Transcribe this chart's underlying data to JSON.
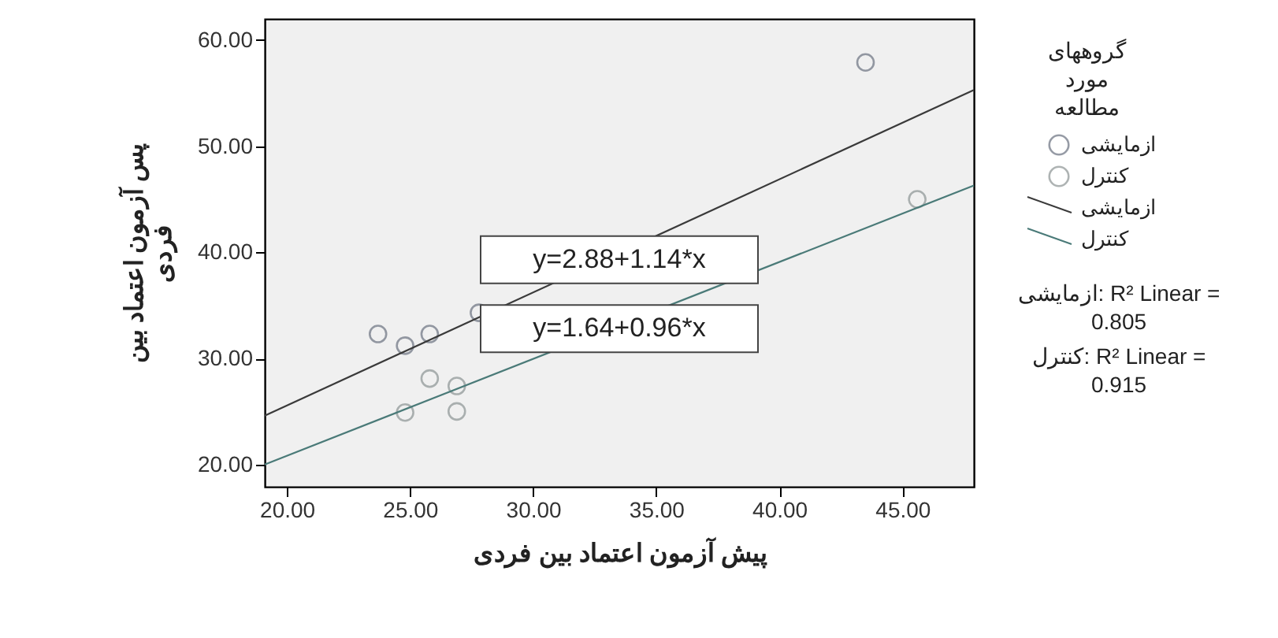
{
  "chart_data": {
    "type": "scatter",
    "xlabel": "پیش آزمون اعتماد بین فردی",
    "ylabel": "پس آزمون اعتماد بین فردی",
    "legend_title": "گروههای مورد مطالعه",
    "legend": "right",
    "grid": false,
    "xlim": [
      19.1,
      47.9
    ],
    "ylim": [
      17.9,
      62
    ],
    "xticks": [
      {
        "value": 20,
        "label": "20.00"
      },
      {
        "value": 25,
        "label": "25.00"
      },
      {
        "value": 30,
        "label": "30.00"
      },
      {
        "value": 35,
        "label": "35.00"
      },
      {
        "value": 40,
        "label": "40.00"
      },
      {
        "value": 45,
        "label": "45.00"
      }
    ],
    "yticks": [
      {
        "value": 20,
        "label": "20.00"
      },
      {
        "value": 30,
        "label": "30.00"
      },
      {
        "value": 40,
        "label": "40.00"
      },
      {
        "value": 50,
        "label": "50.00"
      },
      {
        "value": 60,
        "label": "60.00"
      }
    ],
    "series": [
      {
        "name": "ازمایشی",
        "marker": "circle",
        "color": "#6b7280",
        "x": [
          23.7,
          24.8,
          25.8,
          27.8,
          43.5
        ],
        "values": [
          32.3,
          31.2,
          32.3,
          34.3,
          57.9
        ]
      },
      {
        "name": "کنترل",
        "marker": "circle",
        "color": "#8c9494",
        "x": [
          25.8,
          26.9,
          26.9,
          24.8,
          45.6
        ],
        "values": [
          28.1,
          27.4,
          25.0,
          24.9,
          45.0
        ]
      },
      {
        "name": "ازمایشی",
        "type": "line",
        "color": "#3a3a3a",
        "x": [
          19.1,
          47.9
        ],
        "values": [
          24.6,
          55.3
        ]
      },
      {
        "name": "کنترل",
        "type": "line",
        "color": "#4a7a78",
        "x": [
          19.1,
          47.9
        ],
        "values": [
          20.0,
          46.3
        ]
      }
    ],
    "annotations": [
      {
        "text": "y=2.88+1.14*x",
        "x": 33.5,
        "y": 39.3
      },
      {
        "text": "y=1.64+0.96*x",
        "x": 33.5,
        "y": 32.8
      },
      "ازمایشی: R² Linear = 0.805",
      "کنترل: R² Linear = 0.915"
    ]
  }
}
